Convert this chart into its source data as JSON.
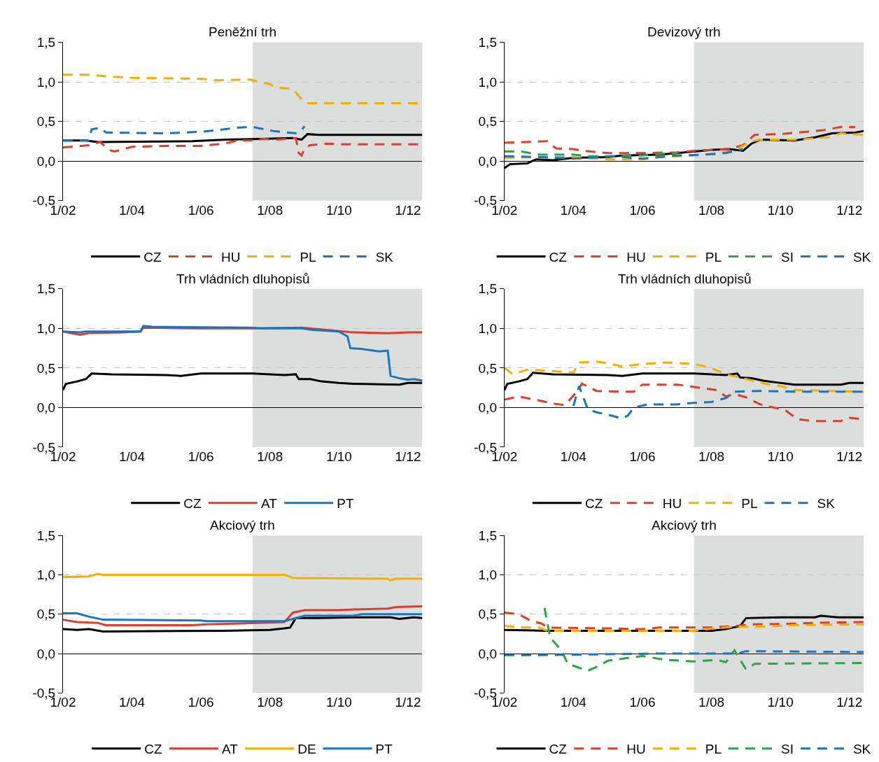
{
  "chart_data": [
    {
      "type": "line",
      "title": "Peněžní trh",
      "xlim": [
        "2002-01",
        "2012-06"
      ],
      "xticks": [
        {
          "value": "2002-01",
          "label": "1/02"
        },
        {
          "value": "2004-01",
          "label": "1/04"
        },
        {
          "value": "2006-01",
          "label": "1/06"
        },
        {
          "value": "2008-01",
          "label": "1/08"
        },
        {
          "value": "2010-01",
          "label": "1/10"
        },
        {
          "value": "2012-01",
          "label": "1/12"
        }
      ],
      "ylim": [
        -0.5,
        1.5
      ],
      "yticks": [
        {
          "value": -0.5,
          "label": "-0,5"
        },
        {
          "value": 0,
          "label": "0,0"
        },
        {
          "value": 0.5,
          "label": "0,5"
        },
        {
          "value": 1,
          "label": "1,0"
        },
        {
          "value": 1.5,
          "label": "1,5"
        }
      ],
      "grid": "y",
      "legend": "bottom",
      "bands": [
        {
          "axis": "x",
          "from": "2007-07",
          "to": "2012-06",
          "color": "#dcdddd"
        }
      ],
      "series": [
        {
          "name": "CZ",
          "color": "#000000",
          "line_style": "solid",
          "x": [
            "2002-01",
            "2002-09",
            "2003-01",
            "2005-10",
            "2006-10",
            "2007-10",
            "2008-09",
            "2008-12",
            "2009-02",
            "2009-06",
            "2012-06"
          ],
          "values": [
            0.26,
            0.26,
            0.24,
            0.25,
            0.27,
            0.28,
            0.29,
            0.27,
            0.34,
            0.33,
            0.33
          ]
        },
        {
          "name": "HU",
          "color": "#d9402d",
          "line_style": "dashed",
          "x": [
            "2002-01",
            "2002-10",
            "2003-02",
            "2003-05",
            "2003-07",
            "2004-01",
            "2005-01",
            "2006-01",
            "2006-09",
            "2007-02",
            "2007-07",
            "2007-11",
            "2008-03",
            "2008-10",
            "2008-11",
            "2008-12",
            "2009-01",
            "2009-03",
            "2009-09",
            "2010-01",
            "2012-06"
          ],
          "values": [
            0.17,
            0.2,
            0.24,
            0.14,
            0.12,
            0.18,
            0.19,
            0.19,
            0.22,
            0.26,
            0.26,
            0.28,
            0.27,
            0.29,
            0.1,
            0.07,
            0.16,
            0.2,
            0.22,
            0.21,
            0.21
          ]
        },
        {
          "name": "PL",
          "color": "#f0b000",
          "line_style": "dashed",
          "x": [
            "2002-01",
            "2002-10",
            "2003-04",
            "2004-01",
            "2006-01",
            "2006-07",
            "2007-06",
            "2008-01",
            "2008-03",
            "2008-09",
            "2008-12",
            "2009-02",
            "2012-06"
          ],
          "values": [
            1.09,
            1.09,
            1.07,
            1.05,
            1.04,
            1.02,
            1.03,
            0.97,
            0.93,
            0.91,
            0.78,
            0.73,
            0.73
          ]
        },
        {
          "name": "SK",
          "color": "#1b75bc",
          "line_style": "dashed",
          "x": [
            "2002-01",
            "2002-10",
            "2002-11",
            "2003-02",
            "2003-04",
            "2005-01",
            "2006-01",
            "2006-07",
            "2007-01",
            "2007-07",
            "2008-02",
            "2008-10",
            "2008-12",
            "2009-01"
          ],
          "values": [
            0.26,
            0.26,
            0.4,
            0.42,
            0.36,
            0.35,
            0.37,
            0.39,
            0.42,
            0.43,
            0.38,
            0.35,
            0.39,
            0.44
          ]
        }
      ]
    },
    {
      "type": "line",
      "title": "Devizový trh",
      "xlim": [
        "2002-01",
        "2012-06"
      ],
      "xticks": [
        {
          "value": "2002-01",
          "label": "1/02"
        },
        {
          "value": "2004-01",
          "label": "1/04"
        },
        {
          "value": "2006-01",
          "label": "1/06"
        },
        {
          "value": "2008-01",
          "label": "1/08"
        },
        {
          "value": "2010-01",
          "label": "1/10"
        },
        {
          "value": "2012-01",
          "label": "1/12"
        }
      ],
      "ylim": [
        -0.5,
        1.5
      ],
      "yticks": [
        {
          "value": -0.5,
          "label": "-0,5"
        },
        {
          "value": 0,
          "label": "0,0"
        },
        {
          "value": 0.5,
          "label": "0,5"
        },
        {
          "value": 1,
          "label": "1,0"
        },
        {
          "value": 1.5,
          "label": "1,5"
        }
      ],
      "grid": "y",
      "legend": "bottom",
      "bands": [
        {
          "axis": "x",
          "from": "2007-07",
          "to": "2012-06",
          "color": "#dcdddd"
        }
      ],
      "series": [
        {
          "name": "CZ",
          "color": "#000000",
          "line_style": "solid",
          "x": [
            "2002-01",
            "2002-03",
            "2002-09",
            "2002-12",
            "2003-06",
            "2004-01",
            "2005-01",
            "2005-06",
            "2006-07",
            "2007-01",
            "2007-07",
            "2008-01",
            "2008-07",
            "2008-12",
            "2009-03",
            "2009-06",
            "2010-06",
            "2011-01",
            "2011-07",
            "2012-03",
            "2012-06"
          ],
          "values": [
            -0.09,
            -0.04,
            -0.03,
            0.02,
            0.01,
            0.04,
            0.05,
            0.07,
            0.08,
            0.1,
            0.12,
            0.14,
            0.15,
            0.13,
            0.22,
            0.27,
            0.26,
            0.3,
            0.35,
            0.36,
            0.38
          ]
        },
        {
          "name": "HU",
          "color": "#d9402d",
          "line_style": "dashed",
          "x": [
            "2002-01",
            "2002-08",
            "2003-04",
            "2003-07",
            "2004-01",
            "2004-04",
            "2005-01",
            "2006-01",
            "2007-01",
            "2007-07",
            "2008-07",
            "2008-12",
            "2009-04",
            "2010-01",
            "2010-07",
            "2011-04",
            "2011-10",
            "2012-03"
          ],
          "values": [
            0.23,
            0.24,
            0.25,
            0.16,
            0.15,
            0.13,
            0.1,
            0.1,
            0.11,
            0.13,
            0.15,
            0.2,
            0.33,
            0.34,
            0.36,
            0.39,
            0.43,
            0.43
          ]
        },
        {
          "name": "PL",
          "color": "#f0b000",
          "line_style": "dashed",
          "x": [
            "2002-01",
            "2003-01",
            "2004-01",
            "2005-01",
            "2006-01",
            "2006-07",
            "2007-07",
            "2008-03",
            "2008-09",
            "2009-03",
            "2009-06",
            "2010-07",
            "2011-06",
            "2011-10",
            "2012-06"
          ],
          "values": [
            0.04,
            0.05,
            0.05,
            0.02,
            0.02,
            0.05,
            0.07,
            0.09,
            0.13,
            0.25,
            0.27,
            0.27,
            0.3,
            0.35,
            0.33
          ]
        },
        {
          "name": "SI",
          "color": "#2ca54a",
          "line_style": "dashed",
          "x": [
            "2002-01",
            "2002-07",
            "2003-01",
            "2004-01",
            "2004-07",
            "2005-01",
            "2006-01",
            "2006-07",
            "2007-01"
          ],
          "values": [
            0.12,
            0.12,
            0.08,
            0.08,
            0.06,
            0.06,
            0.07,
            0.09,
            0.1
          ]
        },
        {
          "name": "SK",
          "color": "#1b75bc",
          "line_style": "dashed",
          "x": [
            "2002-01",
            "2003-01",
            "2004-01",
            "2004-07",
            "2005-03",
            "2006-01",
            "2007-01",
            "2007-10",
            "2008-06",
            "2008-12"
          ],
          "values": [
            0.06,
            0.05,
            0.03,
            0.04,
            0.06,
            0.03,
            0.07,
            0.08,
            0.1,
            0.15
          ]
        }
      ]
    },
    {
      "type": "line",
      "title": "Trh vládních dluhopisů",
      "xlim": [
        "2002-01",
        "2012-06"
      ],
      "xticks": [
        {
          "value": "2002-01",
          "label": "1/02"
        },
        {
          "value": "2004-01",
          "label": "1/04"
        },
        {
          "value": "2006-01",
          "label": "1/06"
        },
        {
          "value": "2008-01",
          "label": "1/08"
        },
        {
          "value": "2010-01",
          "label": "1/10"
        },
        {
          "value": "2012-01",
          "label": "1/12"
        }
      ],
      "ylim": [
        -0.5,
        1.5
      ],
      "yticks": [
        {
          "value": -0.5,
          "label": "-0,5"
        },
        {
          "value": 0,
          "label": "0,0"
        },
        {
          "value": 0.5,
          "label": "0,5"
        },
        {
          "value": 1,
          "label": "1,0"
        },
        {
          "value": 1.5,
          "label": "1,5"
        }
      ],
      "grid": "y",
      "legend": "bottom",
      "bands": [
        {
          "axis": "x",
          "from": "2007-07",
          "to": "2012-06",
          "color": "#dcdddd"
        }
      ],
      "series": [
        {
          "name": "CZ",
          "color": "#000000",
          "line_style": "solid",
          "x": [
            "2002-01",
            "2002-02",
            "2002-06",
            "2002-09",
            "2002-11",
            "2003-06",
            "2005-01",
            "2005-06",
            "2006-01",
            "2007-07",
            "2008-06",
            "2008-10",
            "2008-11",
            "2009-03",
            "2009-07",
            "2010-01",
            "2010-06",
            "2011-10",
            "2012-01",
            "2012-06"
          ],
          "values": [
            0.22,
            0.3,
            0.33,
            0.36,
            0.43,
            0.42,
            0.41,
            0.4,
            0.43,
            0.43,
            0.41,
            0.42,
            0.36,
            0.36,
            0.33,
            0.31,
            0.3,
            0.29,
            0.31,
            0.31
          ]
        },
        {
          "name": "AT",
          "color": "#d9402d",
          "line_style": "solid",
          "x": [
            "2002-01",
            "2002-07",
            "2002-10",
            "2003-10",
            "2004-04",
            "2004-05",
            "2006-01",
            "2007-07",
            "2008-12",
            "2009-06",
            "2010-06",
            "2011-06",
            "2012-01",
            "2012-06"
          ],
          "values": [
            0.96,
            0.92,
            0.94,
            0.95,
            0.96,
            1.01,
            1.0,
            1.0,
            1.01,
            0.99,
            0.95,
            0.94,
            0.95,
            0.95
          ]
        },
        {
          "name": "PT",
          "color": "#1b75bc",
          "line_style": "solid",
          "x": [
            "2002-01",
            "2002-07",
            "2002-09",
            "2004-04",
            "2004-05",
            "2004-08",
            "2007-06",
            "2007-10",
            "2008-12",
            "2009-04",
            "2010-01",
            "2010-04",
            "2010-05",
            "2010-09",
            "2011-03",
            "2011-06",
            "2011-07",
            "2011-10",
            "2012-01",
            "2012-03",
            "2012-06"
          ],
          "values": [
            0.96,
            0.95,
            0.96,
            0.96,
            1.03,
            1.02,
            1.01,
            1.0,
            1.0,
            0.98,
            0.96,
            0.9,
            0.75,
            0.74,
            0.71,
            0.72,
            0.4,
            0.37,
            0.35,
            0.36,
            0.34
          ]
        }
      ]
    },
    {
      "type": "line",
      "title": "Trh vládních dluhopisů",
      "xlim": [
        "2002-01",
        "2012-06"
      ],
      "xticks": [
        {
          "value": "2002-01",
          "label": "1/02"
        },
        {
          "value": "2004-01",
          "label": "1/04"
        },
        {
          "value": "2006-01",
          "label": "1/06"
        },
        {
          "value": "2008-01",
          "label": "1/08"
        },
        {
          "value": "2010-01",
          "label": "1/10"
        },
        {
          "value": "2012-01",
          "label": "1/12"
        }
      ],
      "ylim": [
        -0.5,
        1.5
      ],
      "yticks": [
        {
          "value": -0.5,
          "label": "-0,5"
        },
        {
          "value": 0,
          "label": "0,0"
        },
        {
          "value": 0.5,
          "label": "0,5"
        },
        {
          "value": 1,
          "label": "1,0"
        },
        {
          "value": 1.5,
          "label": "1,5"
        }
      ],
      "grid": "y",
      "legend": "bottom",
      "bands": [
        {
          "axis": "x",
          "from": "2007-07",
          "to": "2012-06",
          "color": "#dcdddd"
        }
      ],
      "series": [
        {
          "name": "CZ",
          "color": "#000000",
          "line_style": "solid",
          "x": [
            "2002-01",
            "2002-02",
            "2002-06",
            "2002-09",
            "2002-11",
            "2003-06",
            "2005-01",
            "2005-06",
            "2006-01",
            "2007-07",
            "2008-06",
            "2008-10",
            "2008-11",
            "2009-03",
            "2009-07",
            "2010-01",
            "2010-06",
            "2011-10",
            "2012-01",
            "2012-06"
          ],
          "values": [
            0.22,
            0.3,
            0.33,
            0.36,
            0.44,
            0.42,
            0.41,
            0.4,
            0.43,
            0.43,
            0.41,
            0.43,
            0.38,
            0.37,
            0.34,
            0.31,
            0.29,
            0.29,
            0.31,
            0.31
          ]
        },
        {
          "name": "HU",
          "color": "#d9402d",
          "line_style": "dashed",
          "x": [
            "2002-01",
            "2002-06",
            "2003-01",
            "2003-06",
            "2003-10",
            "2004-01",
            "2004-04",
            "2004-09",
            "2005-06",
            "2005-10",
            "2006-01",
            "2007-01",
            "2007-07",
            "2008-03",
            "2008-06",
            "2008-09",
            "2009-01",
            "2009-06",
            "2010-01",
            "2010-03",
            "2010-07",
            "2011-01",
            "2011-10",
            "2012-01",
            "2012-06"
          ],
          "values": [
            0.1,
            0.14,
            0.09,
            0.05,
            0.03,
            0.15,
            0.3,
            0.21,
            0.2,
            0.2,
            0.29,
            0.29,
            0.26,
            0.22,
            0.14,
            0.17,
            0.13,
            0.04,
            -0.02,
            -0.04,
            -0.15,
            -0.17,
            -0.17,
            -0.13,
            -0.15
          ]
        },
        {
          "name": "PL",
          "color": "#f0b000",
          "line_style": "dashed",
          "x": [
            "2002-01",
            "2002-04",
            "2002-09",
            "2003-06",
            "2004-01",
            "2004-03",
            "2004-09",
            "2005-01",
            "2005-06",
            "2006-01",
            "2006-09",
            "2007-07",
            "2008-01",
            "2008-06",
            "2009-01",
            "2009-08",
            "2010-01",
            "2010-06",
            "2012-06"
          ],
          "values": [
            0.5,
            0.42,
            0.48,
            0.46,
            0.44,
            0.57,
            0.58,
            0.56,
            0.52,
            0.55,
            0.57,
            0.55,
            0.5,
            0.42,
            0.36,
            0.3,
            0.27,
            0.22,
            0.2
          ]
        },
        {
          "name": "SK",
          "color": "#1b75bc",
          "line_style": "dashed",
          "x": [
            "2004-01",
            "2004-03",
            "2004-06",
            "2004-09",
            "2005-01",
            "2005-06",
            "2005-08",
            "2005-10",
            "2006-03",
            "2007-01",
            "2007-07",
            "2008-01",
            "2008-06",
            "2008-09",
            "2009-06",
            "2010-06",
            "2012-06"
          ],
          "values": [
            0.02,
            0.27,
            -0.02,
            -0.06,
            -0.09,
            -0.14,
            -0.1,
            0.0,
            0.04,
            0.04,
            0.06,
            0.07,
            0.12,
            0.2,
            0.21,
            0.2,
            0.2
          ]
        }
      ]
    },
    {
      "type": "line",
      "title": "Akciový trh",
      "xlim": [
        "2002-01",
        "2012-06"
      ],
      "xticks": [
        {
          "value": "2002-01",
          "label": "1/02"
        },
        {
          "value": "2004-01",
          "label": "1/04"
        },
        {
          "value": "2006-01",
          "label": "1/06"
        },
        {
          "value": "2008-01",
          "label": "1/08"
        },
        {
          "value": "2010-01",
          "label": "1/10"
        },
        {
          "value": "2012-01",
          "label": "1/12"
        }
      ],
      "ylim": [
        -0.5,
        1.5
      ],
      "yticks": [
        {
          "value": -0.5,
          "label": "-0,5"
        },
        {
          "value": 0,
          "label": "0,0"
        },
        {
          "value": 0.5,
          "label": "0,5"
        },
        {
          "value": 1,
          "label": "1,0"
        },
        {
          "value": 1.5,
          "label": "1,5"
        }
      ],
      "grid": "y",
      "legend": "bottom",
      "bands": [
        {
          "axis": "x",
          "from": "2007-07",
          "to": "2012-06",
          "color": "#dcdddd"
        }
      ],
      "series": [
        {
          "name": "CZ",
          "color": "#000000",
          "line_style": "solid",
          "x": [
            "2002-01",
            "2002-06",
            "2002-10",
            "2003-03",
            "2006-09",
            "2008-01",
            "2008-06",
            "2008-08",
            "2008-10",
            "2009-06",
            "2010-06",
            "2011-07",
            "2011-10",
            "2012-03",
            "2012-06"
          ],
          "values": [
            0.31,
            0.3,
            0.31,
            0.28,
            0.29,
            0.3,
            0.32,
            0.33,
            0.45,
            0.45,
            0.46,
            0.46,
            0.44,
            0.46,
            0.45
          ]
        },
        {
          "name": "AT",
          "color": "#d9402d",
          "line_style": "solid",
          "x": [
            "2002-01",
            "2002-06",
            "2003-01",
            "2003-04",
            "2005-10",
            "2006-03",
            "2007-01",
            "2008-06",
            "2008-09",
            "2009-01",
            "2010-01",
            "2010-06",
            "2011-06",
            "2011-09",
            "2012-06"
          ],
          "values": [
            0.43,
            0.4,
            0.39,
            0.36,
            0.36,
            0.37,
            0.38,
            0.4,
            0.52,
            0.55,
            0.55,
            0.56,
            0.57,
            0.59,
            0.6
          ]
        },
        {
          "name": "DE",
          "color": "#f0b000",
          "line_style": "solid",
          "x": [
            "2002-01",
            "2002-10",
            "2003-01",
            "2003-03",
            "2008-06",
            "2008-09",
            "2011-06",
            "2011-07",
            "2011-09",
            "2012-06"
          ],
          "values": [
            0.97,
            0.98,
            1.01,
            1.0,
            1.0,
            0.96,
            0.95,
            0.93,
            0.95,
            0.95
          ]
        },
        {
          "name": "PT",
          "color": "#1b75bc",
          "line_style": "solid",
          "x": [
            "2002-01",
            "2002-06",
            "2002-10",
            "2003-03",
            "2006-01",
            "2006-03",
            "2008-06",
            "2008-09",
            "2009-01",
            "2010-06",
            "2010-09",
            "2012-06"
          ],
          "values": [
            0.51,
            0.51,
            0.47,
            0.43,
            0.42,
            0.41,
            0.41,
            0.44,
            0.48,
            0.48,
            0.5,
            0.5
          ]
        }
      ]
    },
    {
      "type": "line",
      "title": "Akciový trh",
      "xlim": [
        "2002-01",
        "2012-06"
      ],
      "xticks": [
        {
          "value": "2002-01",
          "label": "1/02"
        },
        {
          "value": "2004-01",
          "label": "1/04"
        },
        {
          "value": "2006-01",
          "label": "1/06"
        },
        {
          "value": "2008-01",
          "label": "1/08"
        },
        {
          "value": "2010-01",
          "label": "1/10"
        },
        {
          "value": "2012-01",
          "label": "1/12"
        }
      ],
      "ylim": [
        -0.5,
        1.5
      ],
      "yticks": [
        {
          "value": -0.5,
          "label": "-0,5"
        },
        {
          "value": 0,
          "label": "0,0"
        },
        {
          "value": 0.5,
          "label": "0,5"
        },
        {
          "value": 1,
          "label": "1,0"
        },
        {
          "value": 1.5,
          "label": "1,5"
        }
      ],
      "grid": "y",
      "legend": "bottom",
      "bands": [
        {
          "axis": "x",
          "from": "2007-07",
          "to": "2012-06",
          "color": "#dcdddd"
        }
      ],
      "series": [
        {
          "name": "CZ",
          "color": "#000000",
          "line_style": "solid",
          "x": [
            "2002-01",
            "2003-03",
            "2008-01",
            "2008-06",
            "2008-11",
            "2009-01",
            "2010-01",
            "2011-01",
            "2011-03",
            "2011-09",
            "2012-06"
          ],
          "values": [
            0.3,
            0.29,
            0.29,
            0.31,
            0.35,
            0.45,
            0.46,
            0.46,
            0.48,
            0.46,
            0.46
          ]
        },
        {
          "name": "HU",
          "color": "#d9402d",
          "line_style": "dashed",
          "x": [
            "2002-01",
            "2002-06",
            "2002-10",
            "2003-02",
            "2003-04",
            "2005-01",
            "2006-01",
            "2006-07",
            "2008-01",
            "2008-09",
            "2009-03",
            "2010-06",
            "2011-01",
            "2012-06"
          ],
          "values": [
            0.52,
            0.5,
            0.42,
            0.38,
            0.33,
            0.32,
            0.31,
            0.33,
            0.33,
            0.35,
            0.37,
            0.38,
            0.39,
            0.4
          ]
        },
        {
          "name": "PL",
          "color": "#f0b000",
          "line_style": "dashed",
          "x": [
            "2002-01",
            "2002-08",
            "2003-01",
            "2003-04",
            "2007-07",
            "2008-02",
            "2008-09",
            "2009-06",
            "2010-06",
            "2012-06"
          ],
          "values": [
            0.35,
            0.33,
            0.33,
            0.29,
            0.29,
            0.32,
            0.34,
            0.34,
            0.36,
            0.37
          ]
        },
        {
          "name": "SI",
          "color": "#2ca54a",
          "line_style": "dashed",
          "x": [
            "2003-03",
            "2003-05",
            "2003-07",
            "2003-09",
            "2003-11",
            "2004-03",
            "2004-06",
            "2004-09",
            "2005-01",
            "2006-01",
            "2006-09",
            "2007-07",
            "2008-03",
            "2008-06",
            "2008-09",
            "2009-01",
            "2009-04",
            "2012-06"
          ],
          "values": [
            0.58,
            0.2,
            0.12,
            0.03,
            -0.13,
            -0.18,
            -0.22,
            -0.17,
            -0.09,
            -0.03,
            -0.08,
            -0.1,
            -0.08,
            -0.11,
            0.04,
            -0.2,
            -0.13,
            -0.12
          ]
        },
        {
          "name": "SK",
          "color": "#1b75bc",
          "line_style": "dashed",
          "x": [
            "2002-01",
            "2003-01",
            "2006-07",
            "2008-10",
            "2009-01",
            "2012-06"
          ],
          "values": [
            -0.02,
            -0.02,
            0.0,
            0.0,
            0.03,
            0.02
          ]
        }
      ]
    }
  ]
}
